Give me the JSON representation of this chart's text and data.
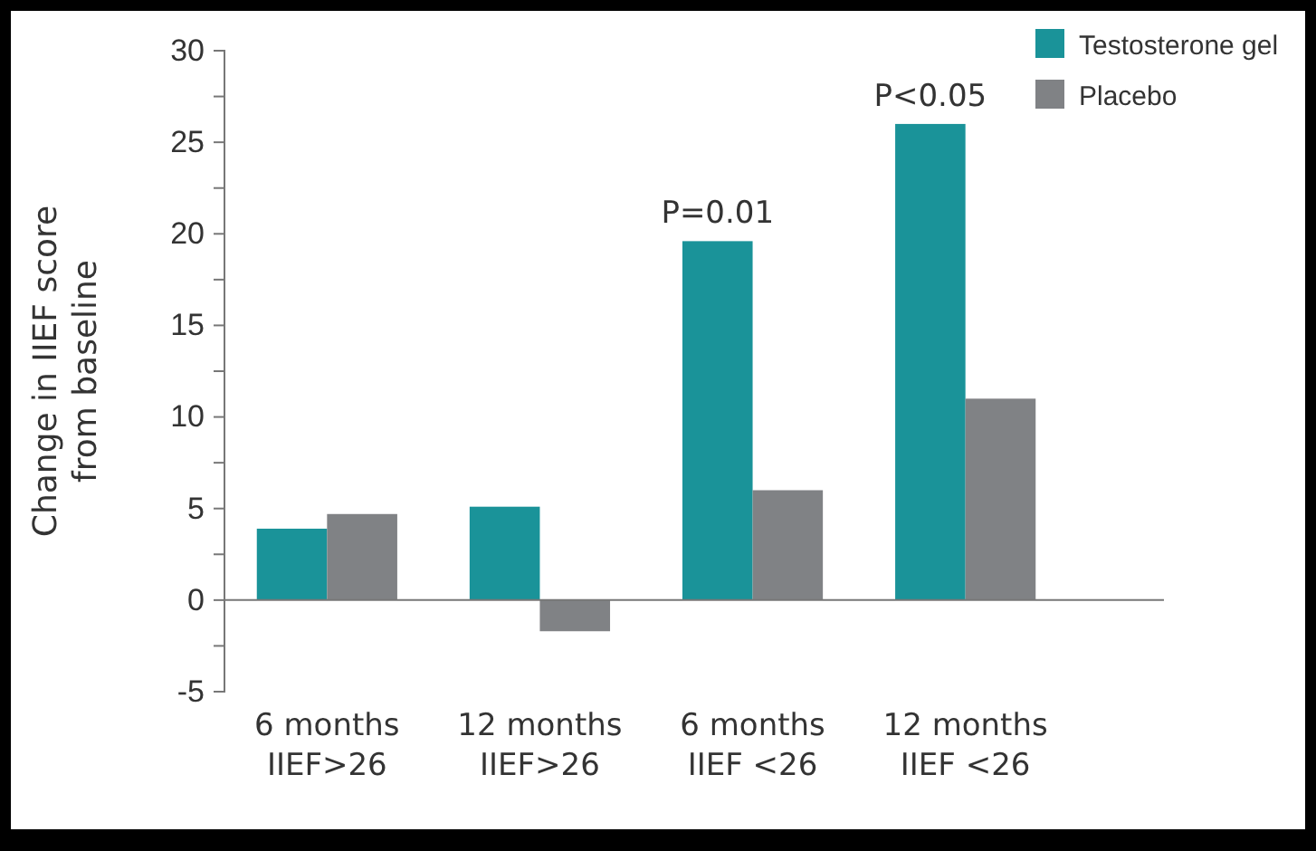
{
  "chart_data": {
    "type": "bar",
    "ylabel": "Change in IIEF score\nfrom baseline",
    "categories": [
      "6 months\nIIEF>26",
      "12 months\nIIEF>26",
      "6 months\nIIEF <26",
      "12 months\nIIEF <26"
    ],
    "series": [
      {
        "name": "Testosterone gel",
        "color": "#1a9399",
        "values": [
          3.9,
          5.1,
          19.6,
          26
        ]
      },
      {
        "name": "Placebo",
        "color": "#808285",
        "values": [
          4.7,
          -1.7,
          6.0,
          11
        ]
      }
    ],
    "ylim": [
      -5,
      30
    ],
    "yticks": [
      -5,
      {
        "value": -2.5,
        "label": null
      },
      0,
      {
        "value": 2.5,
        "label": null
      },
      5,
      {
        "value": 7.5,
        "label": null
      },
      10,
      {
        "value": 12.5,
        "label": null
      },
      15,
      {
        "value": 17.5,
        "label": null
      },
      20,
      {
        "value": 22.5,
        "label": null
      },
      25,
      {
        "value": 27.5,
        "label": null
      },
      30
    ],
    "annotations": [
      {
        "text": "P=0.01",
        "x": "6 months\nIIEF <26",
        "y": 19.6
      },
      {
        "text": "P<0.05",
        "x": "12 months\nIIEF <26",
        "y": 26
      }
    ],
    "legend": "top right"
  }
}
